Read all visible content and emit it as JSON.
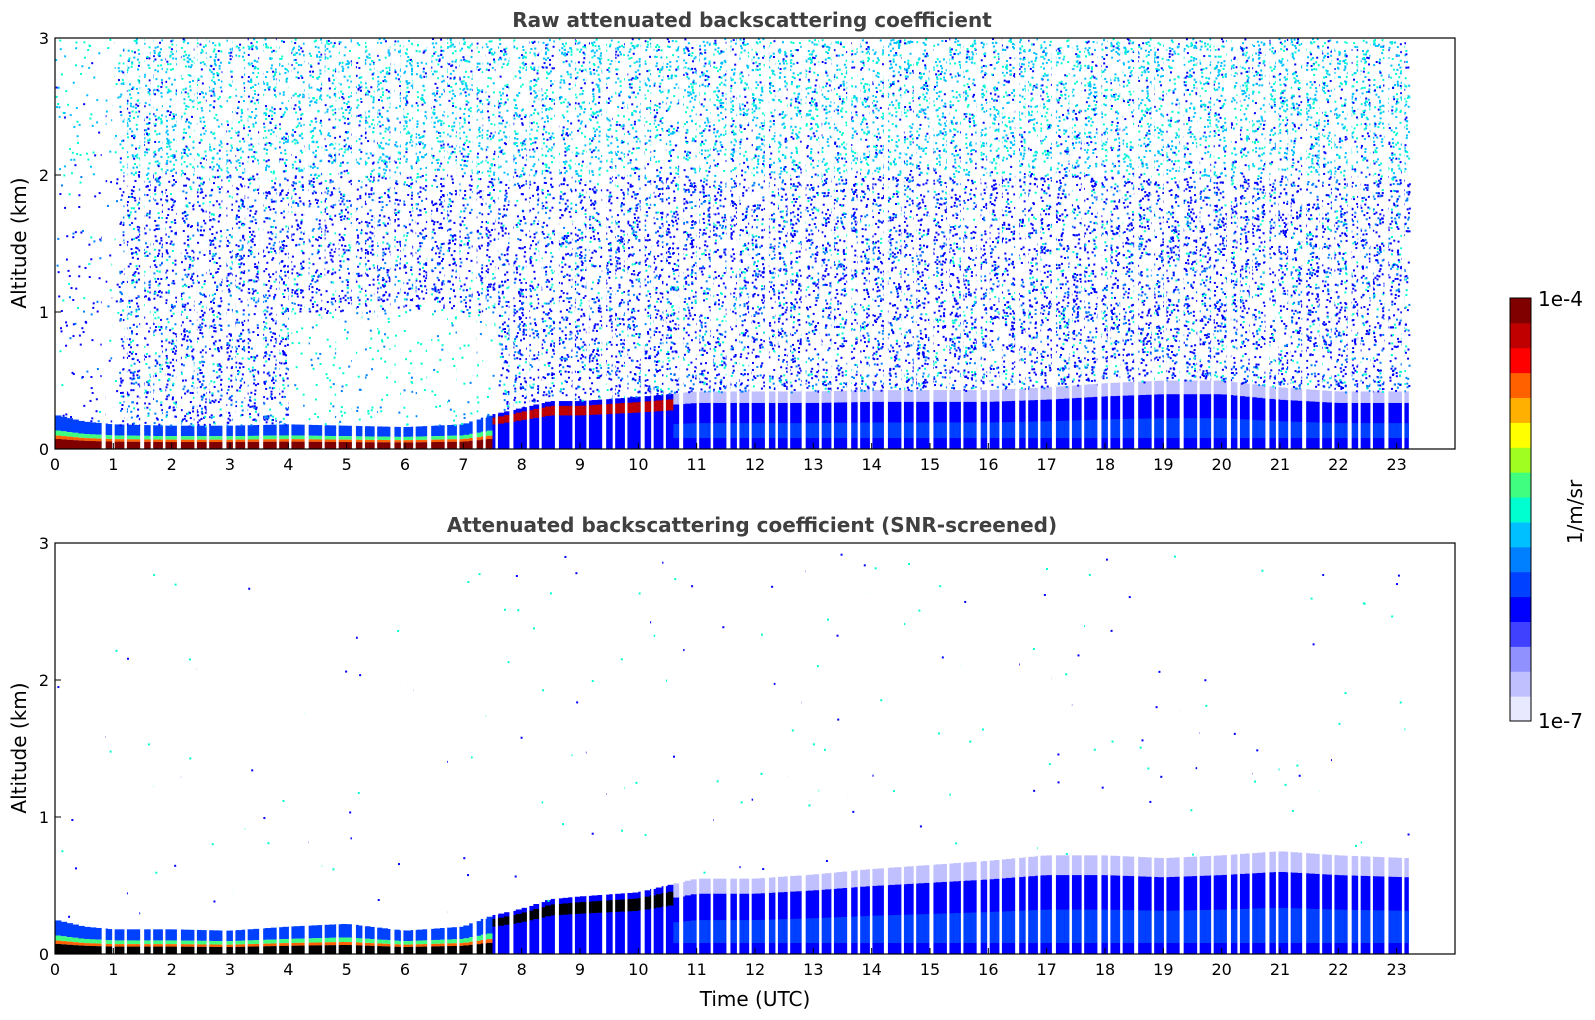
{
  "chart_data": [
    {
      "type": "heatmap",
      "title": "Raw attenuated backscattering coefficient",
      "xlabel": "",
      "ylabel": "Altitude (km)",
      "xlim": [
        0,
        24
      ],
      "ylim": [
        0,
        3
      ],
      "xticks": [
        "0",
        "1",
        "2",
        "3",
        "4",
        "5",
        "6",
        "7",
        "8",
        "9",
        "10",
        "11",
        "12",
        "13",
        "14",
        "15",
        "16",
        "17",
        "18",
        "19",
        "20",
        "21",
        "22",
        "23"
      ],
      "yticks": [
        "0",
        "1",
        "2",
        "3"
      ],
      "data_end_hour": 23.2,
      "layer_top_km": [
        [
          0.0,
          0.25
        ],
        [
          0.5,
          0.2
        ],
        [
          1.0,
          0.18
        ],
        [
          2.0,
          0.17
        ],
        [
          3.0,
          0.17
        ],
        [
          4.0,
          0.18
        ],
        [
          5.0,
          0.17
        ],
        [
          6.0,
          0.16
        ],
        [
          7.0,
          0.18
        ],
        [
          7.5,
          0.25
        ],
        [
          8.0,
          0.3
        ],
        [
          8.5,
          0.35
        ],
        [
          9.0,
          0.35
        ],
        [
          10.0,
          0.38
        ],
        [
          11.0,
          0.42
        ],
        [
          12.0,
          0.42
        ],
        [
          13.0,
          0.42
        ],
        [
          14.0,
          0.43
        ],
        [
          15.0,
          0.43
        ],
        [
          16.0,
          0.43
        ],
        [
          17.0,
          0.45
        ],
        [
          18.0,
          0.48
        ],
        [
          19.0,
          0.5
        ],
        [
          20.0,
          0.5
        ],
        [
          21.0,
          0.45
        ],
        [
          22.0,
          0.42
        ],
        [
          23.2,
          0.42
        ]
      ],
      "noise": "dense speckle above layer (raw signal)"
    },
    {
      "type": "heatmap",
      "title": "Attenuated backscattering coefficient (SNR-screened)",
      "xlabel": "Time (UTC)",
      "ylabel": "Altitude (km)",
      "xlim": [
        0,
        24
      ],
      "ylim": [
        0,
        3
      ],
      "xticks": [
        "0",
        "1",
        "2",
        "3",
        "4",
        "5",
        "6",
        "7",
        "8",
        "9",
        "10",
        "11",
        "12",
        "13",
        "14",
        "15",
        "16",
        "17",
        "18",
        "19",
        "20",
        "21",
        "22",
        "23"
      ],
      "yticks": [
        "0",
        "1",
        "2",
        "3"
      ],
      "data_end_hour": 23.2,
      "layer_top_km": [
        [
          0.0,
          0.25
        ],
        [
          0.5,
          0.2
        ],
        [
          1.0,
          0.18
        ],
        [
          2.0,
          0.18
        ],
        [
          3.0,
          0.17
        ],
        [
          4.0,
          0.2
        ],
        [
          5.0,
          0.22
        ],
        [
          6.0,
          0.17
        ],
        [
          7.0,
          0.2
        ],
        [
          7.5,
          0.28
        ],
        [
          8.0,
          0.33
        ],
        [
          8.5,
          0.4
        ],
        [
          9.0,
          0.42
        ],
        [
          10.0,
          0.45
        ],
        [
          11.0,
          0.55
        ],
        [
          12.0,
          0.55
        ],
        [
          13.0,
          0.58
        ],
        [
          14.0,
          0.62
        ],
        [
          15.0,
          0.65
        ],
        [
          16.0,
          0.68
        ],
        [
          17.0,
          0.72
        ],
        [
          18.0,
          0.72
        ],
        [
          19.0,
          0.7
        ],
        [
          20.0,
          0.72
        ],
        [
          21.0,
          0.75
        ],
        [
          22.0,
          0.72
        ],
        [
          23.2,
          0.7
        ]
      ],
      "noise": "sparse isolated pixels above layer (screened)"
    }
  ],
  "colorbar": {
    "label": "1/m/sr",
    "max_label": "1e-4",
    "min_label": "1e-7",
    "scale": "log",
    "range": [
      1e-07,
      0.0001
    ],
    "colors": [
      "#e8e8ff",
      "#c0c0ff",
      "#9090ff",
      "#4040ff",
      "#0000ff",
      "#0040ff",
      "#0080ff",
      "#00c0ff",
      "#00ffd0",
      "#40ff80",
      "#a0ff20",
      "#ffff00",
      "#ffb000",
      "#ff6000",
      "#ff0000",
      "#c00000",
      "#800000"
    ]
  }
}
